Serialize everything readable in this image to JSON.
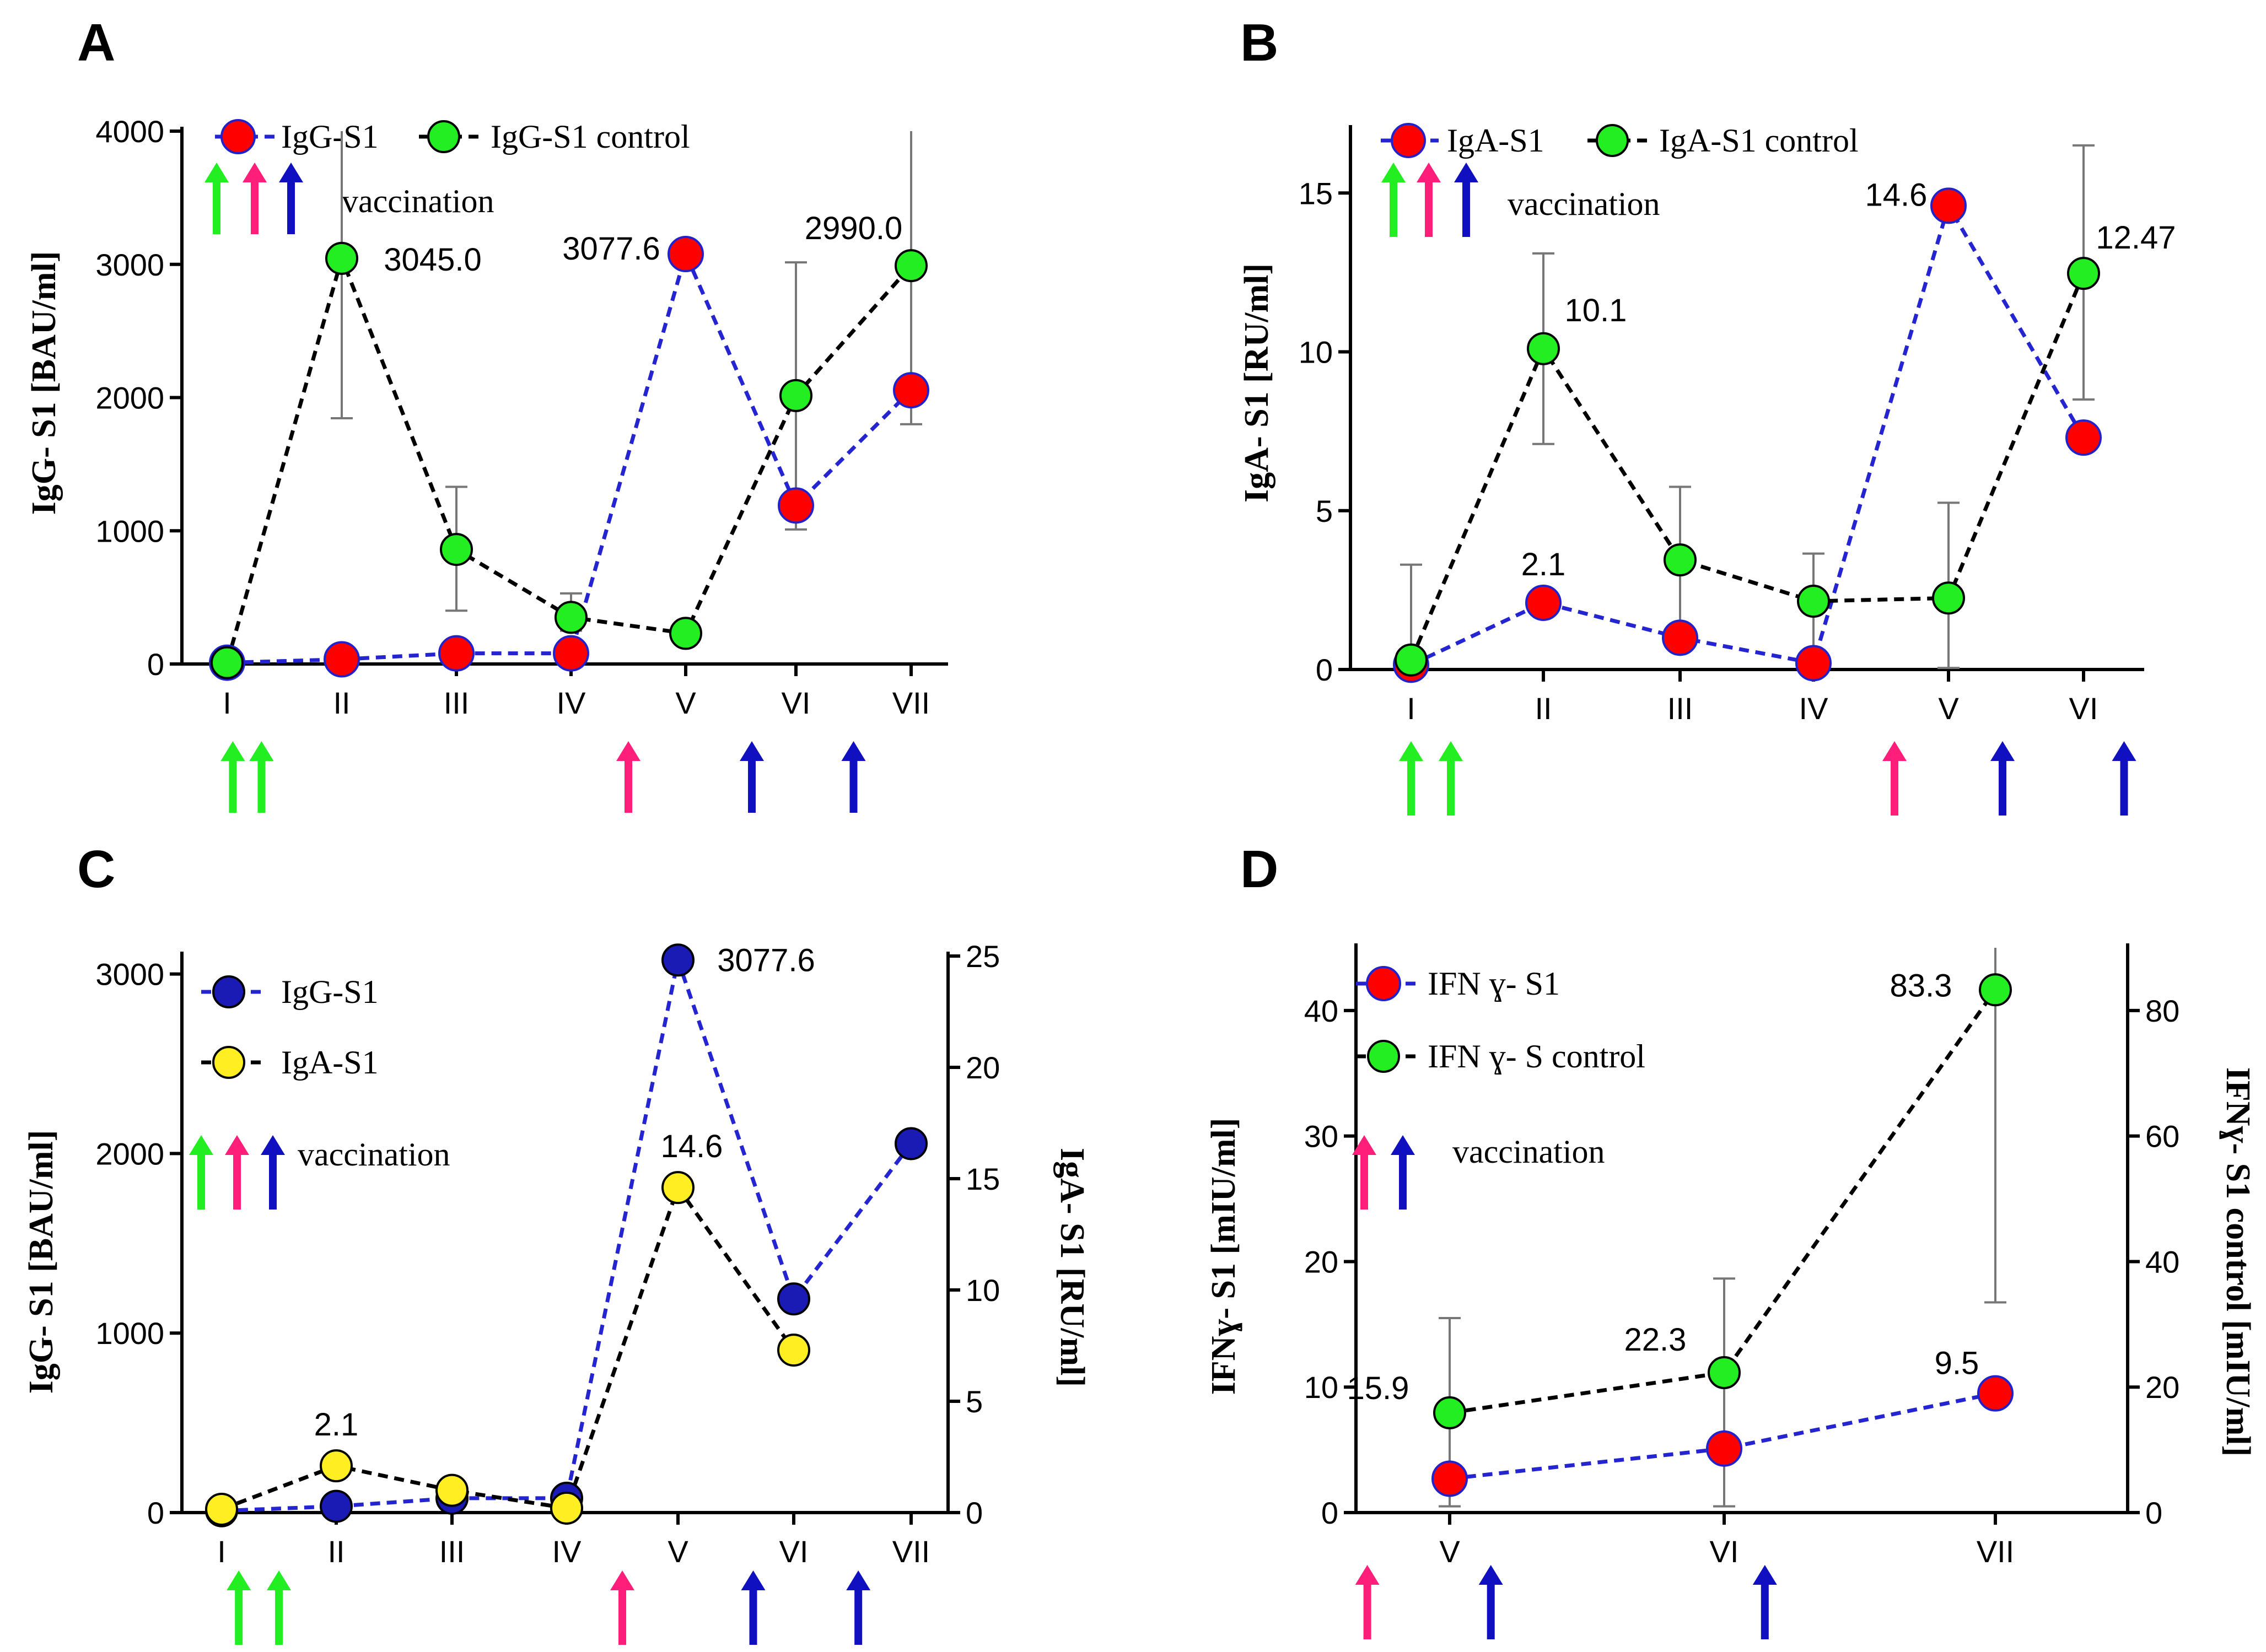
{
  "figure_caption_legend_word": "vaccination",
  "colors": {
    "red_marker": "#ff0000",
    "green_marker": "#22ee22",
    "blue_marker": "#1a1ab5",
    "yellow_marker": "#ffee22",
    "blue_line": "#2424d0",
    "black_line": "#000000",
    "arrow_green": "#22ee22",
    "arrow_pink": "#ff1f7a",
    "arrow_blue": "#1010c0",
    "marker_edge_red": "#2222cc"
  },
  "chart_data": [
    {
      "panel": "A",
      "type": "line",
      "title": "A",
      "ylabel": "IgG- S1 [BAU/ml]",
      "ylim": [
        0,
        4000
      ],
      "yticks": [
        0,
        1000,
        2000,
        3000,
        4000
      ],
      "categories": [
        "I",
        "II",
        "III",
        "IV",
        "V",
        "VI",
        "VII"
      ],
      "legend_vaccination": "vaccination",
      "series": [
        {
          "name": "IgG-S1",
          "color": "red",
          "line": "blue",
          "x": [
            0,
            1,
            2,
            3,
            4,
            5,
            6
          ],
          "values": [
            10,
            35,
            80,
            80,
            3077.6,
            1190,
            2055
          ],
          "err": [
            null,
            null,
            null,
            null,
            null,
            null,
            null
          ]
        },
        {
          "name": "IgG-S1 control",
          "color": "green",
          "line": "black",
          "x": [
            0,
            1,
            2,
            3,
            4,
            5,
            6
          ],
          "values": [
            10,
            3045.0,
            860,
            350,
            230,
            2015,
            2990.0
          ],
          "err_low": [
            null,
            1845,
            400,
            250,
            null,
            1010,
            1800
          ],
          "err_high": [
            null,
            4000,
            1330,
            530,
            null,
            3015,
            4000
          ]
        }
      ],
      "annotations": [
        {
          "text": "3045.0",
          "x": 1,
          "y": 3045.0
        },
        {
          "text": "3077.6",
          "x": 4,
          "y": 3077.6
        },
        {
          "text": "2990.0",
          "x": 5.5,
          "y": 2990.0
        }
      ],
      "below_arrows": [
        {
          "color": "green",
          "x": 0.05
        },
        {
          "color": "green",
          "x": 0.3
        },
        {
          "color": "pink",
          "x": 3.5
        },
        {
          "color": "blue",
          "x": 4.6
        },
        {
          "color": "blue",
          "x": 5.5
        }
      ]
    },
    {
      "panel": "B",
      "type": "line",
      "title": "B",
      "ylabel": "IgA- S1 [RU/ml]",
      "ylim": [
        0,
        17
      ],
      "yticks": [
        0,
        5,
        10,
        15
      ],
      "categories": [
        "I",
        "II",
        "III",
        "IV",
        "V",
        "VI"
      ],
      "legend_vaccination": "vaccination",
      "series": [
        {
          "name": "IgA-S1",
          "color": "red",
          "line": "blue",
          "x": [
            0,
            1,
            2,
            3,
            4,
            5
          ],
          "values": [
            0.15,
            2.1,
            1.0,
            0.2,
            14.6,
            7.3
          ]
        },
        {
          "name": "IgA-S1 control",
          "color": "green",
          "line": "black",
          "x": [
            0,
            1,
            2,
            3,
            4,
            5
          ],
          "values": [
            0.3,
            10.1,
            3.45,
            2.15,
            2.25,
            12.47
          ],
          "err_low": [
            0,
            7.1,
            1.2,
            0.6,
            0.05,
            8.5
          ],
          "err_high": [
            3.3,
            13.1,
            5.75,
            3.65,
            5.25,
            16.5
          ]
        }
      ],
      "annotations": [
        {
          "text": "10.1",
          "x": 1,
          "y": 10.1
        },
        {
          "text": "2.1",
          "x": 1,
          "y": 2.1
        },
        {
          "text": "14.6",
          "x": 4,
          "y": 14.6
        },
        {
          "text": "12.47",
          "x": 5,
          "y": 12.47
        }
      ],
      "below_arrows": [
        {
          "color": "green",
          "x": 0.0
        },
        {
          "color": "green",
          "x": 0.3
        },
        {
          "color": "pink",
          "x": 3.6
        },
        {
          "color": "blue",
          "x": 4.4
        },
        {
          "color": "blue",
          "x": 5.3
        }
      ]
    },
    {
      "panel": "C",
      "type": "line",
      "title": "C",
      "ylabel": "IgG- S1 [BAU/ml]",
      "ylabel_right": "IgA- S1 [RU/ml]",
      "ylim": [
        0,
        3100
      ],
      "yticks": [
        0,
        1000,
        2000,
        3000
      ],
      "ylim_right": [
        0,
        25
      ],
      "yticks_right": [
        0,
        5,
        10,
        15,
        20,
        25
      ],
      "categories": [
        "I",
        "II",
        "III",
        "IV",
        "V",
        "VI",
        "VII"
      ],
      "legend_vaccination": "vaccination",
      "series": [
        {
          "name": "IgG-S1",
          "axis": "left",
          "color": "blue",
          "line": "blue",
          "x": [
            0,
            1,
            2,
            3,
            4,
            5,
            6
          ],
          "values": [
            10,
            35,
            80,
            80,
            3077.6,
            1190,
            2055
          ]
        },
        {
          "name": "IgA-S1",
          "axis": "right",
          "color": "yellow",
          "line": "black",
          "x": [
            0,
            1,
            2,
            3,
            4,
            5
          ],
          "values": [
            0.15,
            2.1,
            1.0,
            0.2,
            14.6,
            7.3
          ]
        }
      ],
      "annotations": [
        {
          "text": "3077.6",
          "x": 4,
          "y": 3077.6,
          "axis": "left"
        },
        {
          "text": "14.6",
          "x": 4,
          "y": 14.6,
          "axis": "right"
        },
        {
          "text": "2.1",
          "x": 1,
          "y": 2.1,
          "axis": "right"
        }
      ],
      "below_arrows": [
        {
          "color": "green",
          "x": 0.15
        },
        {
          "color": "green",
          "x": 0.5
        },
        {
          "color": "pink",
          "x": 3.5
        },
        {
          "color": "blue",
          "x": 4.65
        },
        {
          "color": "blue",
          "x": 5.55
        }
      ]
    },
    {
      "panel": "D",
      "type": "line",
      "title": "D",
      "ylabel": "IFNɣ- S1 [mIU/ml]",
      "ylabel_right": "IFNɣ- S1 control [mIU/ml]",
      "ylim": [
        0,
        45
      ],
      "yticks": [
        0,
        10,
        20,
        30,
        40
      ],
      "ylim_right": [
        0,
        90
      ],
      "yticks_right": [
        0,
        20,
        40,
        60,
        80
      ],
      "categories": [
        "V",
        "VI",
        "VII"
      ],
      "legend_vaccination": "vaccination",
      "series": [
        {
          "name": "IFN ɣ- S1",
          "axis": "left",
          "color": "red",
          "line": "blue",
          "x": [
            0,
            1,
            2
          ],
          "values": [
            2.7,
            5.1,
            9.5
          ]
        },
        {
          "name": "IFN ɣ- S control",
          "axis": "right",
          "color": "green",
          "line": "black",
          "x": [
            0,
            1,
            2
          ],
          "values": [
            15.9,
            22.3,
            83.3
          ],
          "err_low": [
            1,
            1,
            33.5
          ],
          "err_high": [
            31,
            37.3,
            90
          ]
        }
      ],
      "annotations": [
        {
          "text": "15.9",
          "x": 0,
          "y": 15.9,
          "axis": "right"
        },
        {
          "text": "22.3",
          "x": 1,
          "y": 22.3,
          "axis": "right"
        },
        {
          "text": "83.3",
          "x": 2,
          "y": 83.3,
          "axis": "right"
        },
        {
          "text": "9.5",
          "x": 2,
          "y": 9.5,
          "axis": "left"
        }
      ],
      "below_arrows": [
        {
          "color": "pink",
          "x": -0.3
        },
        {
          "color": "blue",
          "x": 0.15
        },
        {
          "color": "blue",
          "x": 1.15
        }
      ]
    }
  ]
}
